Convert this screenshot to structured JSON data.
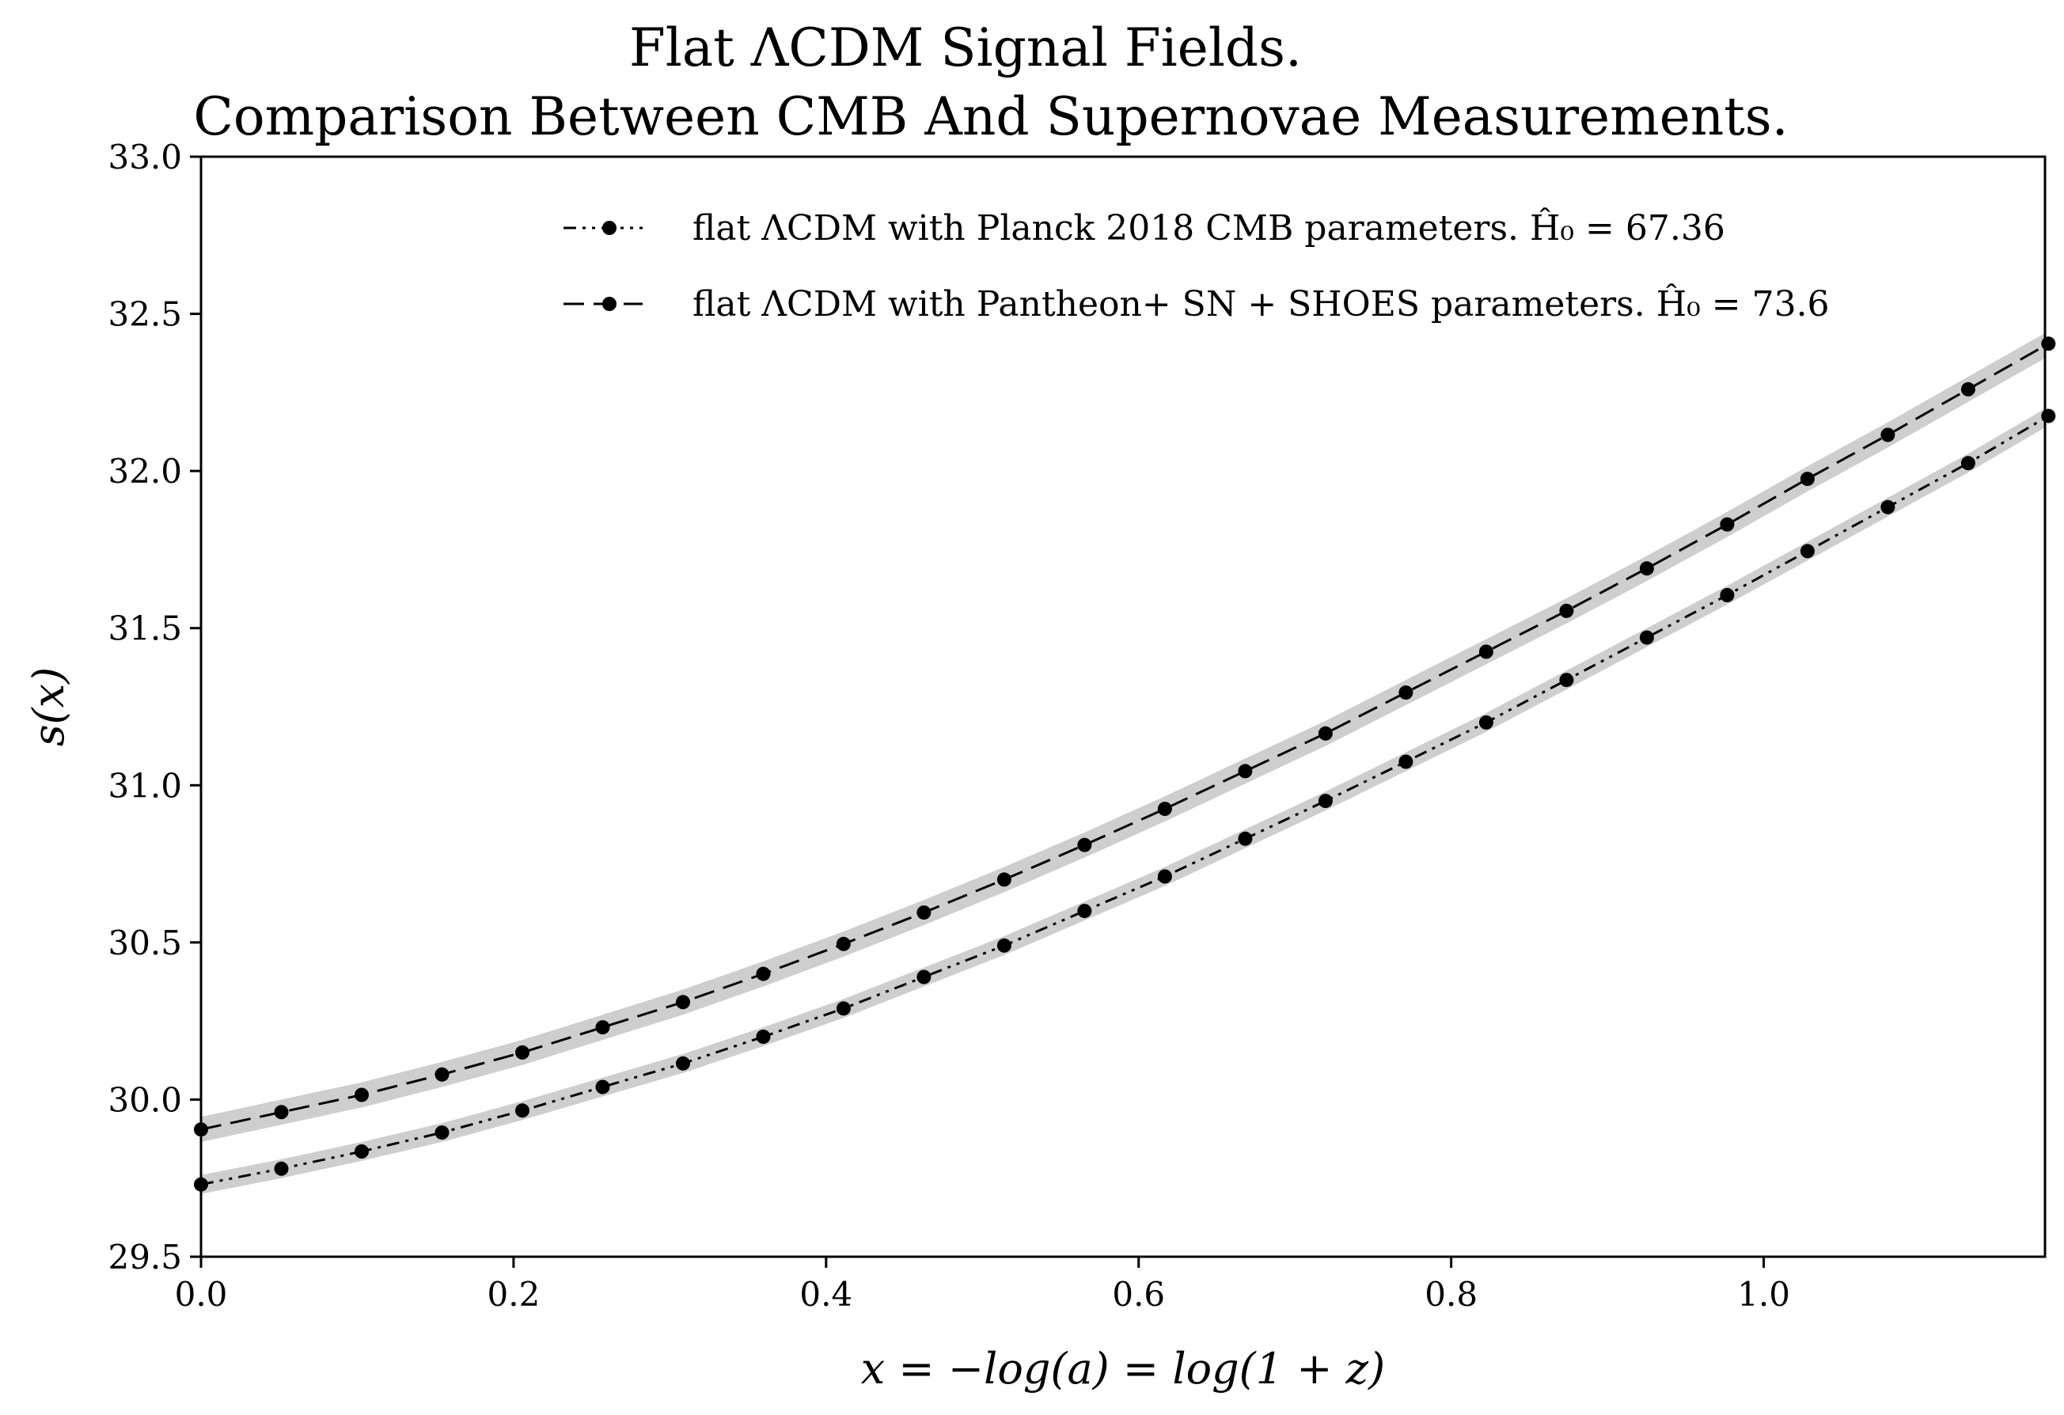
{
  "chart_data": {
    "type": "line",
    "title": [
      "Flat ΛCDM Signal Fields.",
      "Comparison Between CMB And Supernovae Measurements."
    ],
    "xlabel": "x = −log(a) = log(1 + z)",
    "ylabel": "s(x)",
    "xlim": [
      0.0,
      1.18
    ],
    "ylim": [
      29.5,
      33.0
    ],
    "xticks": [
      0.0,
      0.2,
      0.4,
      0.6,
      0.8,
      1.0
    ],
    "xtick_labels": [
      "0.0",
      "0.2",
      "0.4",
      "0.6",
      "0.8",
      "1.0"
    ],
    "yticks": [
      29.5,
      30.0,
      30.5,
      31.0,
      31.5,
      32.0,
      32.5,
      33.0
    ],
    "ytick_labels": [
      "29.5",
      "30.0",
      "30.5",
      "31.0",
      "31.5",
      "32.0",
      "32.5",
      "33.0"
    ],
    "grid": false,
    "legend_position": "top-right",
    "x": [
      0.0,
      0.0514,
      0.1028,
      0.1542,
      0.2056,
      0.257,
      0.3084,
      0.3598,
      0.4112,
      0.4626,
      0.514,
      0.5654,
      0.6168,
      0.6682,
      0.7196,
      0.771,
      0.8224,
      0.8738,
      0.9252,
      0.9766,
      1.028,
      1.0794,
      1.1308,
      1.1822
    ],
    "series": [
      {
        "name": "flat ΛCDM with Planck 2018 CMB parameters. Ĥ₀ = 67.36",
        "linestyle": "dashdotdot",
        "color": "#000000",
        "band_color": "#bdbdbd",
        "band_halfwidth": 0.03,
        "values": [
          29.73,
          29.78,
          29.835,
          29.895,
          29.965,
          30.04,
          30.115,
          30.2,
          30.29,
          30.39,
          30.49,
          30.6,
          30.71,
          30.83,
          30.95,
          31.075,
          31.2,
          31.335,
          31.47,
          31.605,
          31.745,
          31.885,
          32.025,
          32.175
        ]
      },
      {
        "name": "flat ΛCDM with Pantheon+ SN + SHOES parameters. Ĥ₀ = 73.6",
        "linestyle": "dashed",
        "color": "#000000",
        "band_color": "#bdbdbd",
        "band_halfwidth": 0.04,
        "values": [
          29.905,
          29.96,
          30.015,
          30.08,
          30.15,
          30.23,
          30.31,
          30.4,
          30.495,
          30.595,
          30.7,
          30.81,
          30.925,
          31.045,
          31.165,
          31.295,
          31.425,
          31.555,
          31.69,
          31.83,
          31.975,
          32.115,
          32.26,
          32.405
        ]
      }
    ]
  }
}
